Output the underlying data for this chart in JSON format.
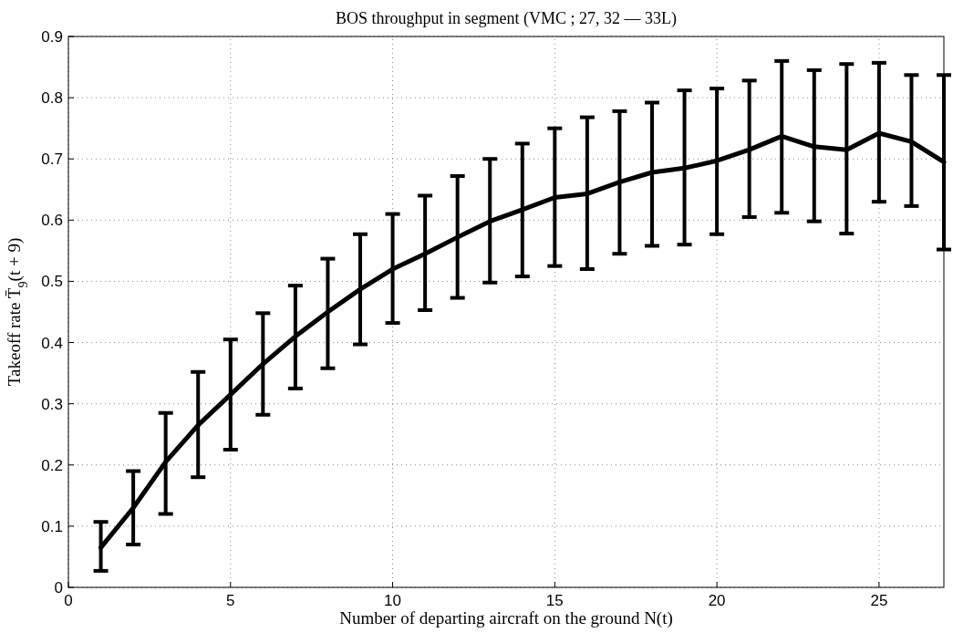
{
  "chart_data": {
    "type": "line",
    "title": "BOS throughput in segment (VMC ; 27, 32 — 33L)",
    "xlabel": "Number of departing aircraft on the ground N(t)",
    "ylabel": "Takeoff rate T̄$_{9}$(t + 9)",
    "x": [
      1,
      2,
      3,
      4,
      5,
      6,
      7,
      8,
      9,
      10,
      11,
      12,
      13,
      14,
      15,
      16,
      17,
      18,
      19,
      20,
      21,
      22,
      23,
      24,
      25,
      26,
      27
    ],
    "series": [
      {
        "color": "#000000",
        "values": [
          0.065,
          0.13,
          0.205,
          0.265,
          0.315,
          0.365,
          0.41,
          0.45,
          0.487,
          0.52,
          0.545,
          0.572,
          0.598,
          0.617,
          0.637,
          0.643,
          0.662,
          0.678,
          0.685,
          0.697,
          0.715,
          0.737,
          0.72,
          0.715,
          0.742,
          0.728,
          0.695
        ],
        "errors": [
          [
            0.027,
            0.107
          ],
          [
            0.07,
            0.19
          ],
          [
            0.12,
            0.285
          ],
          [
            0.18,
            0.352
          ],
          [
            0.225,
            0.405
          ],
          [
            0.282,
            0.448
          ],
          [
            0.325,
            0.493
          ],
          [
            0.358,
            0.537
          ],
          [
            0.397,
            0.577
          ],
          [
            0.432,
            0.61
          ],
          [
            0.453,
            0.64
          ],
          [
            0.473,
            0.672
          ],
          [
            0.498,
            0.7
          ],
          [
            0.508,
            0.725
          ],
          [
            0.525,
            0.75
          ],
          [
            0.52,
            0.768
          ],
          [
            0.545,
            0.778
          ],
          [
            0.558,
            0.792
          ],
          [
            0.56,
            0.812
          ],
          [
            0.577,
            0.815
          ],
          [
            0.605,
            0.828
          ],
          [
            0.612,
            0.86
          ],
          [
            0.598,
            0.845
          ],
          [
            0.578,
            0.855
          ],
          [
            0.63,
            0.857
          ],
          [
            0.623,
            0.837
          ],
          [
            0.552,
            0.837
          ]
        ]
      }
    ],
    "xlim": [
      0,
      27
    ],
    "xticks": [
      0,
      5,
      10,
      15,
      20,
      25
    ],
    "ylim": [
      0,
      0.9
    ],
    "yticks": [
      0,
      0.1,
      0.2,
      0.3,
      0.4,
      0.5,
      0.6,
      0.7,
      0.8,
      0.9
    ],
    "grid": true,
    "marker": "none",
    "line_style": "solid"
  }
}
